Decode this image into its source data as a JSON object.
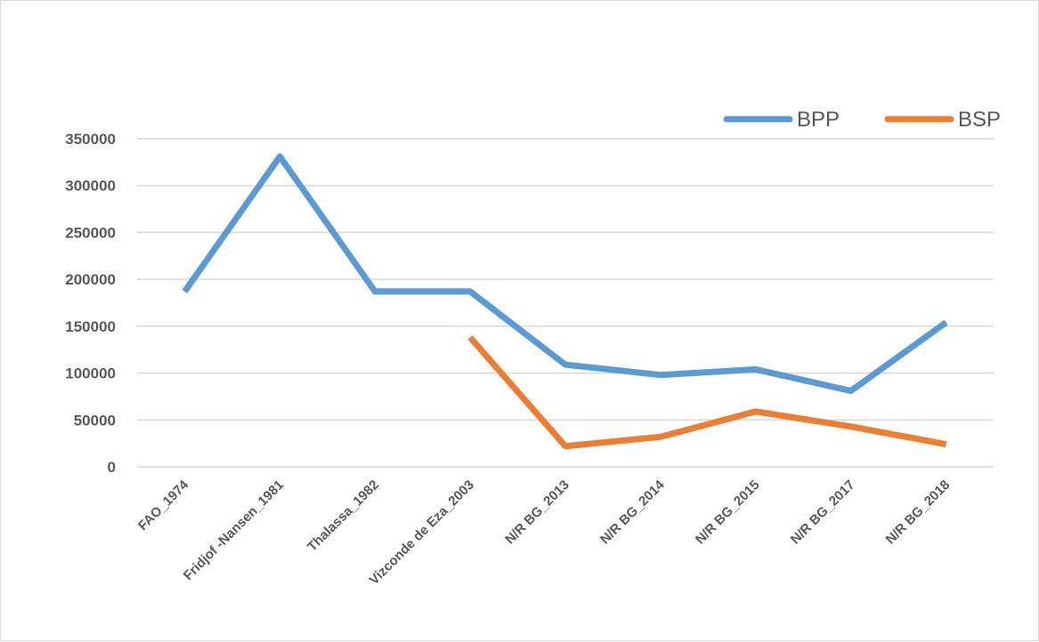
{
  "chart_data": {
    "type": "line",
    "categories": [
      "FAO_1974",
      "Fridjof -Nansen_1981",
      "Thalassa_1982",
      "Vizconde de Eza_2003",
      "N/R BG_2013",
      "N/R BG_2014",
      "N/R BG_2015",
      "N/R BG_2017",
      "N/R BG_2018"
    ],
    "series": [
      {
        "name": "BPP",
        "color": "#5b9bd5",
        "values": [
          187000,
          331000,
          187000,
          187000,
          109000,
          98000,
          104000,
          81000,
          154000
        ]
      },
      {
        "name": "BSP",
        "color": "#ed7d31",
        "values": [
          null,
          null,
          null,
          138000,
          22000,
          32000,
          59000,
          43000,
          24000
        ]
      }
    ],
    "yticks": [
      "0",
      "50000",
      "100000",
      "150000",
      "200000",
      "250000",
      "300000",
      "350000"
    ],
    "ylim": [
      0,
      350000
    ],
    "grid": true,
    "legend": "top-right",
    "title": "",
    "xlabel": "",
    "ylabel": ""
  }
}
